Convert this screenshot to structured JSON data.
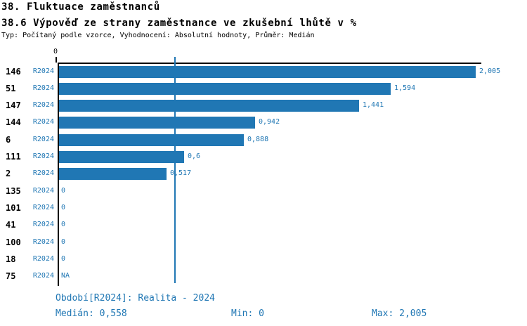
{
  "header": {
    "title1": "38. Fluktuace zaměstnanců",
    "title2": "38.6 Výpověď ze strany zaměstnance ve zkušební lhůtě v %",
    "subtitle": "Typ: Počítaný podle vzorce, Vyhodnocení: Absolutní hodnoty, Průměr: Medián"
  },
  "chart_data": {
    "type": "bar",
    "orientation": "horizontal",
    "title": "38.6 Výpověď ze strany zaměstnance ve zkušební lhůtě v %",
    "series_label": "R2024",
    "categories": [
      "146",
      "51",
      "147",
      "144",
      "6",
      "111",
      "2",
      "135",
      "101",
      "41",
      "100",
      "18",
      "75"
    ],
    "values": [
      2.005,
      1.594,
      1.441,
      0.942,
      0.888,
      0.6,
      0.517,
      0,
      0,
      0,
      0,
      0,
      null
    ],
    "value_labels": [
      "2,005",
      "1,594",
      "1,441",
      "0,942",
      "0,888",
      "0,6",
      "0,517",
      "0",
      "0",
      "0",
      "0",
      "0",
      "NA"
    ],
    "axis": {
      "tick_label": "0",
      "xlim": [
        0,
        2.005
      ],
      "grid": false
    },
    "median": 0.558,
    "legend_position": "none",
    "colors": {
      "bar": "#2077b4",
      "median_line": "#2077b4",
      "text_blue": "#2077b4",
      "axis": "#000000",
      "id_text": "#000000"
    }
  },
  "footer": {
    "period": "Období[R2024]: Realita - 2024",
    "median": "Medián: 0,558",
    "min": "Min: 0",
    "max": "Max: 2,005"
  }
}
